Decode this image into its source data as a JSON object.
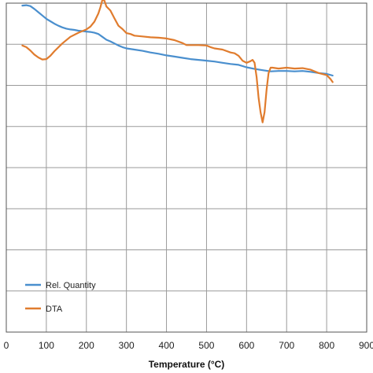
{
  "chart_data": {
    "type": "line",
    "xlabel": "Temperature (°C)",
    "ylabel": "",
    "xlim": [
      0,
      900
    ],
    "x_ticks": [
      0,
      100,
      200,
      300,
      400,
      500,
      600,
      700,
      800,
      900
    ],
    "y_gridlines": 8,
    "grid": true,
    "legend_position": "bottom-left",
    "series": [
      {
        "name": "Rel. Quantity",
        "color": "#4a8fce",
        "x": [
          40,
          50,
          60,
          70,
          80,
          90,
          100,
          110,
          120,
          130,
          140,
          150,
          160,
          170,
          180,
          190,
          200,
          210,
          220,
          230,
          240,
          250,
          260,
          270,
          280,
          290,
          300,
          320,
          340,
          360,
          380,
          400,
          420,
          440,
          460,
          480,
          500,
          520,
          540,
          560,
          580,
          600,
          620,
          640,
          660,
          680,
          700,
          720,
          740,
          760,
          780,
          800,
          815
        ],
        "y": [
          0.06,
          0.05,
          0.07,
          0.14,
          0.22,
          0.3,
          0.38,
          0.44,
          0.5,
          0.55,
          0.59,
          0.62,
          0.64,
          0.65,
          0.67,
          0.68,
          0.69,
          0.7,
          0.72,
          0.75,
          0.82,
          0.89,
          0.93,
          0.98,
          1.03,
          1.07,
          1.1,
          1.13,
          1.16,
          1.2,
          1.23,
          1.27,
          1.3,
          1.33,
          1.36,
          1.38,
          1.4,
          1.42,
          1.45,
          1.48,
          1.5,
          1.56,
          1.6,
          1.63,
          1.66,
          1.65,
          1.65,
          1.66,
          1.65,
          1.67,
          1.7,
          1.72,
          1.76
        ]
      },
      {
        "name": "DTA",
        "color": "#e07c2e",
        "x": [
          40,
          50,
          60,
          70,
          80,
          90,
          100,
          110,
          120,
          140,
          160,
          180,
          200,
          210,
          220,
          230,
          235,
          240,
          245,
          250,
          260,
          270,
          280,
          290,
          300,
          310,
          320,
          340,
          360,
          380,
          400,
          420,
          440,
          450,
          460,
          480,
          500,
          510,
          520,
          540,
          560,
          570,
          580,
          590,
          600,
          610,
          615,
          620,
          625,
          630,
          635,
          640,
          645,
          650,
          655,
          660,
          665,
          680,
          700,
          720,
          740,
          760,
          780,
          800,
          810,
          815
        ],
        "y": [
          1.03,
          1.07,
          1.15,
          1.25,
          1.32,
          1.37,
          1.36,
          1.28,
          1.17,
          0.98,
          0.82,
          0.72,
          0.64,
          0.57,
          0.45,
          0.25,
          0.1,
          -0.08,
          -0.06,
          0.08,
          0.18,
          0.37,
          0.55,
          0.63,
          0.73,
          0.75,
          0.79,
          0.81,
          0.83,
          0.84,
          0.86,
          0.9,
          0.97,
          1.02,
          1.02,
          1.02,
          1.03,
          1.07,
          1.1,
          1.13,
          1.2,
          1.22,
          1.28,
          1.4,
          1.45,
          1.41,
          1.38,
          1.45,
          1.8,
          2.3,
          2.65,
          2.9,
          2.65,
          2.1,
          1.7,
          1.57,
          1.57,
          1.59,
          1.57,
          1.59,
          1.58,
          1.62,
          1.7,
          1.75,
          1.85,
          1.92
        ]
      }
    ]
  }
}
